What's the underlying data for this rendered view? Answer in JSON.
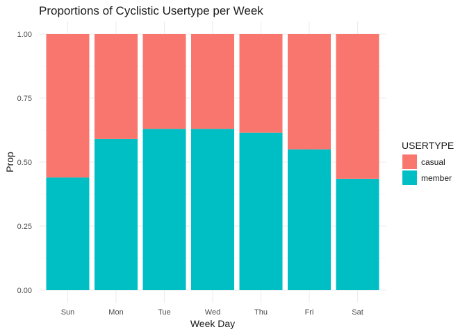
{
  "chart_data": {
    "type": "bar",
    "stacked": true,
    "title": "Proportions of Cyclistic Usertype per Week",
    "xlabel": "Week Day",
    "ylabel": "Prop",
    "categories": [
      "Sun",
      "Mon",
      "Tue",
      "Wed",
      "Thu",
      "Fri",
      "Sat"
    ],
    "series": [
      {
        "name": "member",
        "color": "#00BFC4",
        "values": [
          0.44,
          0.59,
          0.63,
          0.63,
          0.615,
          0.55,
          0.435
        ]
      },
      {
        "name": "casual",
        "color": "#F8766D",
        "values": [
          0.56,
          0.41,
          0.37,
          0.37,
          0.385,
          0.45,
          0.565
        ]
      }
    ],
    "ylim": [
      0,
      1
    ],
    "yticks": [
      "0.00",
      "0.25",
      "0.50",
      "0.75",
      "1.00"
    ],
    "grid": true,
    "legend": {
      "title": "USERTYPE",
      "position": "right",
      "entries": [
        {
          "label": "casual",
          "color": "#F8766D"
        },
        {
          "label": "member",
          "color": "#00BFC4"
        }
      ]
    }
  }
}
